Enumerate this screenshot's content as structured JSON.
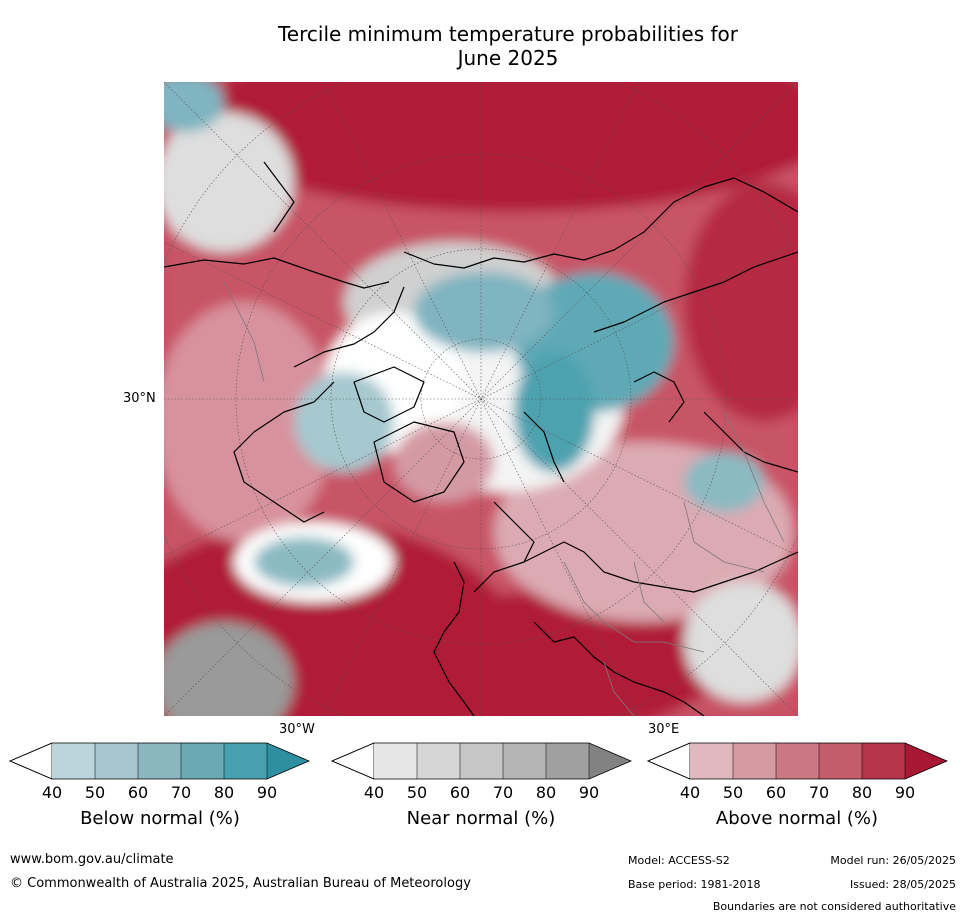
{
  "title_line1": "Tercile minimum temperature probabilities for",
  "title_line2": "June 2025",
  "labels": {
    "lat_30n": "30°N",
    "lon_30w": "30°W",
    "lon_30e": "30°E"
  },
  "colorbars": [
    {
      "title": "Below normal (%)",
      "ticks": [
        "40",
        "50",
        "60",
        "70",
        "80",
        "90"
      ],
      "colors": [
        "#bcd4dc",
        "#a5c6cd",
        "#8bb6c0",
        "#6aaab5",
        "#46a0ae",
        "#2e8fa0"
      ]
    },
    {
      "title": "Near normal (%)",
      "ticks": [
        "40",
        "50",
        "60",
        "70",
        "80",
        "90"
      ],
      "colors": [
        "#e6e6e6",
        "#d6d6d6",
        "#c6c6c6",
        "#b4b4b4",
        "#a0a0a0",
        "#828282"
      ]
    },
    {
      "title": "Above normal (%)",
      "ticks": [
        "40",
        "50",
        "60",
        "70",
        "80",
        "90"
      ],
      "colors": [
        "#e2b8bf",
        "#d69aa3",
        "#c97884",
        "#c45c6b",
        "#b7334a",
        "#a81733"
      ]
    }
  ],
  "footer": {
    "website": "www.bom.gov.au/climate",
    "copyright": "© Commonwealth of Australia 2025, Australian Bureau of Meteorology",
    "model": "Model: ACCESS-S2",
    "model_run": "Model run: 26/05/2025",
    "base_period": "Base period: 1981-2018",
    "issued": "Issued: 28/05/2025",
    "disclaimer": "Boundaries are not considered authoritative"
  }
}
